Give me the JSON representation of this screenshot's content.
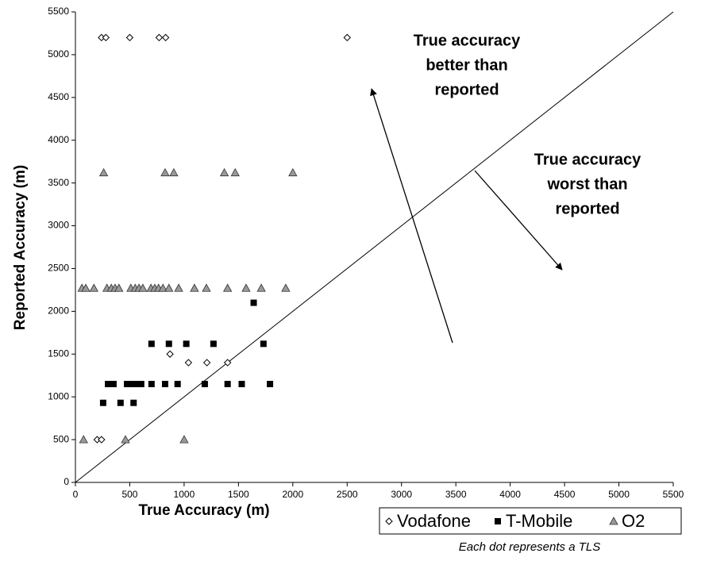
{
  "chart_data": {
    "type": "scatter",
    "x_label": "True Accuracy (m)",
    "y_label": "Reported Accuracy (m)",
    "xlim": [
      0,
      5500
    ],
    "ylim": [
      0,
      5500
    ],
    "xticks": [
      0,
      500,
      1000,
      1500,
      2000,
      2500,
      3000,
      3500,
      4000,
      4500,
      5000,
      5500
    ],
    "yticks": [
      0,
      500,
      1000,
      1500,
      2000,
      2500,
      3000,
      3500,
      4000,
      4500,
      5000,
      5500
    ],
    "grid": false,
    "legend": "bottom-right",
    "series": [
      {
        "name": "Vodafone",
        "marker": "diamond",
        "color": "#000000",
        "x": [
          240,
          280,
          500,
          770,
          830,
          2500,
          870,
          1040,
          1210,
          1400,
          200,
          240
        ],
        "values": [
          5200,
          5200,
          5200,
          5200,
          5200,
          5200,
          1500,
          1400,
          1400,
          1400,
          500,
          500
        ]
      },
      {
        "name": "T-Mobile",
        "marker": "square",
        "color": "#000000",
        "x": [
          1640,
          700,
          860,
          1020,
          1270,
          1730,
          300,
          350,
          475,
          520,
          560,
          605,
          700,
          825,
          940,
          1190,
          1400,
          1530,
          1790,
          255,
          415,
          535
        ],
        "values": [
          2100,
          1620,
          1620,
          1620,
          1620,
          1620,
          1150,
          1150,
          1150,
          1150,
          1150,
          1150,
          1150,
          1150,
          1150,
          1150,
          1150,
          1150,
          1150,
          930,
          930,
          930
        ]
      },
      {
        "name": "O2",
        "marker": "triangle",
        "color": "#999999",
        "x": [
          260,
          825,
          905,
          1370,
          1470,
          2000,
          60,
          95,
          170,
          290,
          330,
          365,
          400,
          510,
          550,
          585,
          620,
          695,
          730,
          765,
          805,
          860,
          950,
          1095,
          1205,
          1400,
          1570,
          1710,
          1935,
          75,
          460,
          1000
        ],
        "values": [
          3620,
          3620,
          3620,
          3620,
          3620,
          3620,
          2270,
          2270,
          2270,
          2270,
          2270,
          2270,
          2270,
          2270,
          2270,
          2270,
          2270,
          2270,
          2270,
          2270,
          2270,
          2270,
          2270,
          2270,
          2270,
          2270,
          2270,
          2270,
          2270,
          500,
          500,
          500
        ]
      }
    ],
    "annotations": [
      {
        "lines": [
          "True accuracy",
          "better than",
          "reported"
        ]
      },
      {
        "lines": [
          "True accuracy",
          "worst than",
          "reported"
        ]
      }
    ],
    "caption": "Each dot represents a TLS"
  }
}
